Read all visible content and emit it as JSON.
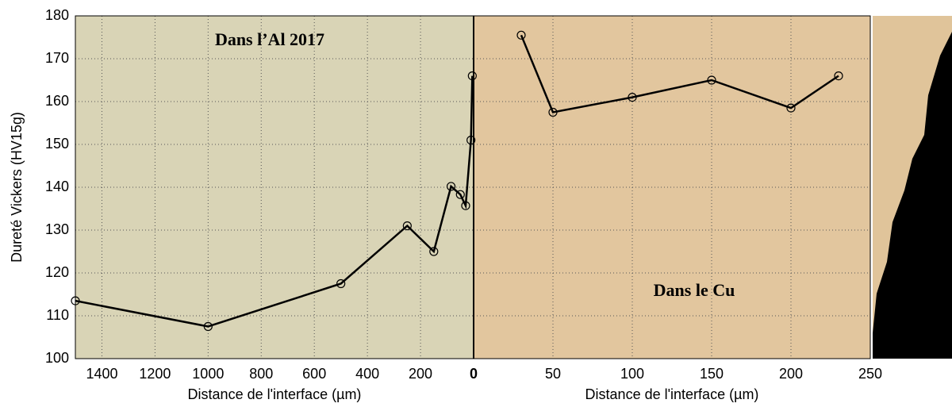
{
  "chart_data": [
    {
      "type": "line",
      "annotation": "Dans l’Al 2017",
      "xlabel": "Distance de l'interface (µm)",
      "ylabel": "Dureté Vickers (HV15g)",
      "x": [
        1500,
        1000,
        500,
        250,
        150,
        85,
        50,
        30,
        10,
        5
      ],
      "series": [
        {
          "color": "#000000",
          "values": [
            113.5,
            107.5,
            117.5,
            131,
            125,
            140.2,
            138.3,
            135.7,
            151,
            166
          ]
        }
      ],
      "xlim": [
        1500,
        0
      ],
      "xticks": [
        1400,
        1200,
        1000,
        800,
        600,
        400,
        200,
        0
      ],
      "ylim": [
        100,
        180
      ],
      "yticks": [
        100,
        110,
        120,
        130,
        140,
        150,
        160,
        170,
        180
      ],
      "grid": true
    },
    {
      "type": "line",
      "annotation": "Dans le Cu",
      "xlabel": "Distance de l'interface (µm)",
      "x": [
        30,
        50,
        100,
        150,
        200,
        230
      ],
      "series": [
        {
          "color": "#000000",
          "values": [
            175.5,
            157.5,
            161,
            165,
            158.5,
            166
          ]
        }
      ],
      "xlim": [
        0,
        250
      ],
      "xticks": [
        50,
        100,
        150,
        200,
        250
      ],
      "ylim": [
        100,
        180
      ],
      "yticks": [
        100,
        110,
        120,
        130,
        140,
        150,
        160,
        170,
        180
      ],
      "grid": true
    }
  ]
}
